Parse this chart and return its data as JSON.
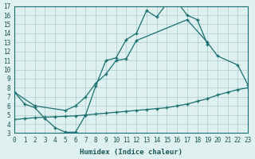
{
  "xlabel": "Humidex (Indice chaleur)",
  "bg_color": "#dff0f0",
  "grid_color": "#aacccc",
  "line_color": "#1a7070",
  "xlim": [
    0,
    23
  ],
  "ylim": [
    3,
    17
  ],
  "xticks": [
    0,
    1,
    2,
    3,
    4,
    5,
    6,
    7,
    8,
    9,
    10,
    11,
    12,
    13,
    14,
    15,
    16,
    17,
    18,
    19,
    20,
    21,
    22,
    23
  ],
  "yticks": [
    3,
    4,
    5,
    6,
    7,
    8,
    9,
    10,
    11,
    12,
    13,
    14,
    15,
    16,
    17
  ],
  "curve1_x": [
    0,
    1,
    2,
    3,
    4,
    5,
    6,
    7,
    8,
    9,
    10,
    11,
    12,
    13,
    14,
    15,
    16,
    17,
    18,
    19
  ],
  "curve1_y": [
    7.5,
    6.2,
    5.8,
    4.6,
    3.6,
    3.1,
    3.1,
    5.0,
    8.2,
    11.0,
    11.3,
    13.3,
    14.0,
    16.5,
    15.8,
    17.3,
    17.5,
    16.0,
    15.5,
    12.8
  ],
  "curve2_x": [
    0,
    2,
    5,
    6,
    7,
    8,
    9,
    10,
    11,
    12,
    17,
    19,
    20,
    22,
    23
  ],
  "curve2_y": [
    7.5,
    6.0,
    5.5,
    6.0,
    7.0,
    8.5,
    9.5,
    11.0,
    11.2,
    13.2,
    15.5,
    13.0,
    11.5,
    10.5,
    8.3
  ],
  "curve3_x": [
    0,
    1,
    2,
    3,
    4,
    5,
    6,
    7,
    8,
    9,
    10,
    11,
    12,
    13,
    14,
    15,
    16,
    17,
    18,
    19,
    20,
    21,
    22,
    23
  ],
  "curve3_y": [
    4.5,
    4.6,
    4.7,
    4.75,
    4.8,
    4.85,
    4.9,
    5.0,
    5.1,
    5.2,
    5.3,
    5.4,
    5.5,
    5.6,
    5.7,
    5.8,
    6.0,
    6.2,
    6.5,
    6.8,
    7.2,
    7.5,
    7.8,
    8.0
  ]
}
